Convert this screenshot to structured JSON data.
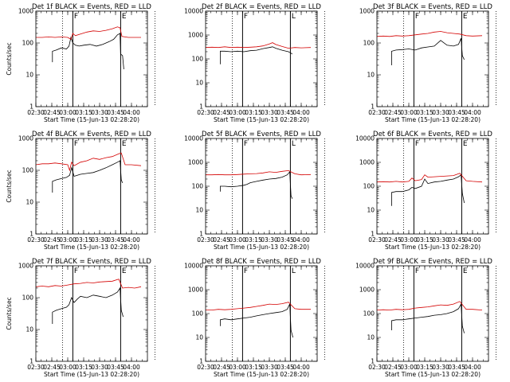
{
  "colors": {
    "events": "#000000",
    "lld": "#d40000"
  },
  "chart_data": [
    {
      "type": "line",
      "title": "Det 1f BLACK = Events, RED = LLD",
      "xlabel": "Start Time (15-Jun-13 02:28:20)",
      "ylabel": "Counts/sec",
      "y_log": true,
      "ylim": [
        1,
        1000
      ],
      "ytick_labels": [
        "1",
        "10",
        "100",
        "1000"
      ],
      "xtick_labels": [
        "02:30",
        "02:45",
        "03:00",
        "03:15",
        "03:30",
        "03:45",
        "04:00"
      ],
      "dotted_lines_hours": [
        2.92,
        4.37
      ],
      "flag_lines": [
        {
          "t": 3.08,
          "letter": "F"
        },
        {
          "t": 3.83,
          "letter": "E"
        }
      ],
      "series": [
        {
          "name": "Events",
          "x": [
            2.76,
            2.76,
            2.82,
            2.9,
            2.98,
            3.02,
            3.05,
            3.08,
            3.12,
            3.18,
            3.25,
            3.35,
            3.45,
            3.55,
            3.65,
            3.72,
            3.78,
            3.82,
            3.83,
            3.86,
            3.88
          ],
          "y": [
            25,
            55,
            60,
            70,
            65,
            80,
            150,
            100,
            85,
            80,
            85,
            90,
            80,
            90,
            110,
            130,
            180,
            200,
            45,
            40,
            15
          ]
        },
        {
          "name": "LLD",
          "x": [
            2.5,
            2.6,
            2.7,
            2.8,
            2.9,
            3.0,
            3.05,
            3.08,
            3.12,
            3.2,
            3.3,
            3.4,
            3.5,
            3.6,
            3.7,
            3.78,
            3.82,
            3.85,
            3.95,
            4.05,
            4.15
          ],
          "y": [
            150,
            150,
            155,
            150,
            155,
            150,
            130,
            200,
            170,
            190,
            220,
            240,
            230,
            250,
            280,
            320,
            300,
            160,
            150,
            150,
            150
          ]
        }
      ]
    },
    {
      "type": "line",
      "title": "Det 2f BLACK = Events, RED = LLD",
      "xlabel": "Start Time (15-Jun-13 02:28:20)",
      "ylabel": "",
      "y_log": true,
      "ylim": [
        1,
        10000
      ],
      "ytick_labels": [
        "1",
        "10",
        "100",
        "1000",
        "10000"
      ],
      "xtick_labels": [
        "02:30",
        "02:45",
        "03:00",
        "03:15",
        "03:30",
        "03:45",
        "04:00"
      ],
      "dotted_lines_hours": [
        2.92,
        4.37
      ],
      "flag_lines": [
        {
          "t": 3.08,
          "letter": "F"
        },
        {
          "t": 3.83,
          "letter": "L"
        }
      ],
      "series": [
        {
          "name": "Events",
          "x": [
            2.73,
            2.73,
            2.8,
            2.9,
            3.0,
            3.1,
            3.2,
            3.3,
            3.4,
            3.5,
            3.55,
            3.6,
            3.7,
            3.8,
            3.83,
            3.86
          ],
          "y": [
            60,
            210,
            210,
            200,
            210,
            200,
            220,
            230,
            270,
            300,
            320,
            280,
            230,
            200,
            180,
            160
          ]
        },
        {
          "name": "LLD",
          "x": [
            2.5,
            2.6,
            2.7,
            2.8,
            2.9,
            3.0,
            3.1,
            3.2,
            3.3,
            3.4,
            3.5,
            3.55,
            3.6,
            3.7,
            3.8,
            3.9,
            4.0,
            4.15
          ],
          "y": [
            300,
            310,
            300,
            320,
            300,
            310,
            300,
            310,
            320,
            350,
            420,
            480,
            400,
            330,
            280,
            300,
            290,
            300
          ]
        }
      ]
    },
    {
      "type": "line",
      "title": "Det 3f BLACK = Events, RED = LLD",
      "xlabel": "Start Time (15-Jun-13 02:28:20)",
      "ylabel": "",
      "y_log": true,
      "ylim": [
        1,
        1000
      ],
      "ytick_labels": [
        "1",
        "10",
        "100",
        "1000"
      ],
      "xtick_labels": [
        "02:30",
        "02:45",
        "03:00",
        "03:15",
        "03:30",
        "03:45",
        "04:00"
      ],
      "dotted_lines_hours": [
        2.92,
        4.37
      ],
      "flag_lines": [
        {
          "t": 3.08,
          "letter": "F"
        },
        {
          "t": 3.83,
          "letter": "E"
        }
      ],
      "series": [
        {
          "name": "Events",
          "x": [
            2.73,
            2.73,
            2.8,
            2.9,
            3.0,
            3.1,
            3.2,
            3.3,
            3.4,
            3.5,
            3.6,
            3.7,
            3.78,
            3.82,
            3.84,
            3.87
          ],
          "y": [
            20,
            55,
            60,
            62,
            65,
            60,
            70,
            75,
            80,
            120,
            85,
            80,
            90,
            140,
            40,
            30
          ]
        },
        {
          "name": "LLD",
          "x": [
            2.5,
            2.6,
            2.7,
            2.8,
            2.9,
            3.0,
            3.1,
            3.2,
            3.3,
            3.4,
            3.5,
            3.6,
            3.7,
            3.8,
            3.9,
            4.0,
            4.15
          ],
          "y": [
            160,
            165,
            160,
            170,
            165,
            170,
            180,
            190,
            200,
            220,
            230,
            210,
            200,
            190,
            170,
            165,
            170
          ]
        }
      ]
    },
    {
      "type": "line",
      "title": "Det 4f BLACK = Events, RED = LLD",
      "xlabel": "Start Time (15-Jun-13 02:28:20)",
      "ylabel": "Counts/sec",
      "y_log": true,
      "ylim": [
        1,
        1000
      ],
      "ytick_labels": [
        "1",
        "10",
        "100",
        "1000"
      ],
      "xtick_labels": [
        "02:30",
        "02:45",
        "03:00",
        "03:15",
        "03:30",
        "03:45",
        "04:00"
      ],
      "dotted_lines_hours": [
        2.92,
        4.37
      ],
      "flag_lines": [
        {
          "t": 3.08,
          "letter": "F"
        },
        {
          "t": 3.83,
          "letter": "E"
        }
      ],
      "series": [
        {
          "name": "Events",
          "x": [
            2.76,
            2.76,
            2.82,
            2.9,
            2.98,
            3.03,
            3.06,
            3.1,
            3.15,
            3.2,
            3.3,
            3.4,
            3.5,
            3.6,
            3.7,
            3.78,
            3.82,
            3.84,
            3.86
          ],
          "y": [
            20,
            45,
            50,
            55,
            60,
            70,
            120,
            65,
            70,
            75,
            80,
            85,
            100,
            120,
            150,
            180,
            200,
            50,
            40
          ]
        },
        {
          "name": "LLD",
          "x": [
            2.5,
            2.6,
            2.7,
            2.8,
            2.9,
            3.0,
            3.03,
            3.06,
            3.1,
            3.2,
            3.3,
            3.4,
            3.5,
            3.6,
            3.7,
            3.8,
            3.84,
            3.9,
            4.0,
            4.15
          ],
          "y": [
            150,
            160,
            160,
            170,
            160,
            150,
            100,
            180,
            140,
            180,
            200,
            240,
            220,
            250,
            270,
            330,
            350,
            150,
            150,
            140
          ]
        }
      ]
    },
    {
      "type": "line",
      "title": "Det 5f BLACK = Events, RED = LLD",
      "xlabel": "Start Time (15-Jun-13 02:28:20)",
      "ylabel": "",
      "y_log": true,
      "ylim": [
        1,
        10000
      ],
      "ytick_labels": [
        "1",
        "10",
        "100",
        "1000",
        "10000"
      ],
      "xtick_labels": [
        "02:30",
        "02:45",
        "03:00",
        "03:15",
        "03:30",
        "03:45",
        "04:00"
      ],
      "dotted_lines_hours": [
        2.92,
        4.37
      ],
      "flag_lines": [
        {
          "t": 3.08,
          "letter": "F"
        },
        {
          "t": 3.83,
          "letter": "L"
        }
      ],
      "series": [
        {
          "name": "Events",
          "x": [
            2.73,
            2.73,
            2.8,
            2.9,
            3.0,
            3.1,
            3.15,
            3.2,
            3.3,
            3.4,
            3.5,
            3.6,
            3.7,
            3.78,
            3.82,
            3.84,
            3.86
          ],
          "y": [
            60,
            100,
            100,
            95,
            100,
            110,
            120,
            140,
            160,
            180,
            200,
            210,
            240,
            300,
            400,
            40,
            30
          ]
        },
        {
          "name": "LLD",
          "x": [
            2.5,
            2.6,
            2.7,
            2.8,
            2.9,
            3.0,
            3.1,
            3.2,
            3.3,
            3.4,
            3.5,
            3.6,
            3.7,
            3.8,
            3.9,
            4.0,
            4.15
          ],
          "y": [
            300,
            300,
            310,
            300,
            300,
            310,
            320,
            330,
            340,
            360,
            400,
            380,
            420,
            450,
            330,
            300,
            310
          ]
        }
      ]
    },
    {
      "type": "line",
      "title": "Det 6f BLACK = Events, RED = LLD",
      "xlabel": "Start Time (15-Jun-13 02:28:20)",
      "ylabel": "",
      "y_log": true,
      "ylim": [
        1,
        10000
      ],
      "ytick_labels": [
        "1",
        "10",
        "100",
        "1000",
        "10000"
      ],
      "xtick_labels": [
        "02:30",
        "02:45",
        "03:00",
        "03:15",
        "03:30",
        "03:45",
        "04:00"
      ],
      "dotted_lines_hours": [
        2.92,
        4.37
      ],
      "flag_lines": [
        {
          "t": 3.08,
          "letter": "F"
        },
        {
          "t": 3.83,
          "letter": "E"
        }
      ],
      "series": [
        {
          "name": "Events",
          "x": [
            2.73,
            2.73,
            2.8,
            2.9,
            3.0,
            3.05,
            3.1,
            3.2,
            3.25,
            3.3,
            3.4,
            3.5,
            3.6,
            3.7,
            3.78,
            3.82,
            3.84,
            3.87
          ],
          "y": [
            15,
            55,
            60,
            60,
            70,
            90,
            80,
            100,
            200,
            130,
            150,
            160,
            180,
            200,
            250,
            300,
            50,
            20
          ]
        },
        {
          "name": "LLD",
          "x": [
            2.5,
            2.6,
            2.7,
            2.8,
            2.9,
            3.0,
            3.05,
            3.1,
            3.2,
            3.25,
            3.3,
            3.4,
            3.5,
            3.6,
            3.7,
            3.8,
            3.9,
            4.0,
            4.15
          ],
          "y": [
            150,
            155,
            150,
            160,
            150,
            160,
            220,
            170,
            190,
            300,
            240,
            250,
            260,
            270,
            280,
            350,
            170,
            160,
            150
          ]
        }
      ]
    },
    {
      "type": "line",
      "title": "Det 7f BLACK = Events, RED = LLD",
      "xlabel": "Start Time (15-Jun-13 02:28:20)",
      "ylabel": "Counts/sec",
      "y_log": true,
      "ylim": [
        1,
        1000
      ],
      "ytick_labels": [
        "1",
        "10",
        "100",
        "1000"
      ],
      "xtick_labels": [
        "02:30",
        "02:45",
        "03:00",
        "03:15",
        "03:30",
        "03:45",
        "04:00"
      ],
      "dotted_lines_hours": [
        2.92,
        4.37
      ],
      "flag_lines": [
        {
          "t": 3.08,
          "letter": "F"
        },
        {
          "t": 3.83,
          "letter": "E"
        }
      ],
      "series": [
        {
          "name": "Events",
          "x": [
            2.76,
            2.76,
            2.82,
            2.9,
            2.98,
            3.02,
            3.06,
            3.1,
            3.15,
            3.2,
            3.3,
            3.4,
            3.5,
            3.6,
            3.7,
            3.78,
            3.82,
            3.84,
            3.87
          ],
          "y": [
            15,
            35,
            40,
            45,
            50,
            60,
            100,
            70,
            90,
            110,
            100,
            120,
            110,
            100,
            120,
            150,
            200,
            40,
            25
          ]
        },
        {
          "name": "LLD",
          "x": [
            2.5,
            2.6,
            2.7,
            2.8,
            2.9,
            3.0,
            3.1,
            3.2,
            3.3,
            3.4,
            3.5,
            3.6,
            3.7,
            3.8,
            3.86,
            3.95,
            4.05,
            4.15
          ],
          "y": [
            220,
            230,
            220,
            240,
            230,
            250,
            270,
            280,
            300,
            290,
            310,
            320,
            330,
            380,
            200,
            210,
            200,
            220
          ]
        }
      ]
    },
    {
      "type": "line",
      "title": "Det 8f BLACK = Events, RED = LLD",
      "xlabel": "Start Time (15-Jun-13 02:28:20)",
      "ylabel": "",
      "y_log": true,
      "ylim": [
        1,
        10000
      ],
      "ytick_labels": [
        "1",
        "10",
        "100",
        "1000",
        "10000"
      ],
      "xtick_labels": [
        "02:30",
        "02:45",
        "03:00",
        "03:15",
        "03:30",
        "03:45",
        "04:00"
      ],
      "dotted_lines_hours": [
        2.92,
        4.37
      ],
      "flag_lines": [
        {
          "t": 3.08,
          "letter": "F"
        },
        {
          "t": 3.83,
          "letter": "L"
        }
      ],
      "series": [
        {
          "name": "Events",
          "x": [
            2.73,
            2.73,
            2.8,
            2.9,
            3.0,
            3.1,
            3.2,
            3.3,
            3.4,
            3.5,
            3.6,
            3.7,
            3.78,
            3.82,
            3.84,
            3.87
          ],
          "y": [
            30,
            55,
            60,
            55,
            60,
            65,
            70,
            80,
            90,
            100,
            110,
            120,
            150,
            250,
            20,
            10
          ]
        },
        {
          "name": "LLD",
          "x": [
            2.5,
            2.6,
            2.7,
            2.8,
            2.9,
            3.0,
            3.1,
            3.2,
            3.3,
            3.4,
            3.5,
            3.6,
            3.7,
            3.8,
            3.9,
            4.0,
            4.15
          ],
          "y": [
            140,
            140,
            150,
            145,
            150,
            160,
            170,
            180,
            200,
            220,
            250,
            240,
            260,
            300,
            160,
            150,
            150
          ]
        }
      ]
    },
    {
      "type": "line",
      "title": "Det 9f BLACK = Events, RED = LLD",
      "xlabel": "Start Time (15-Jun-13 02:28:20)",
      "ylabel": "",
      "y_log": true,
      "ylim": [
        1,
        10000
      ],
      "ytick_labels": [
        "1",
        "10",
        "100",
        "1000",
        "10000"
      ],
      "xtick_labels": [
        "02:30",
        "02:45",
        "03:00",
        "03:15",
        "03:30",
        "03:45",
        "04:00"
      ],
      "dotted_lines_hours": [
        2.92,
        4.37
      ],
      "flag_lines": [
        {
          "t": 3.08,
          "letter": "F"
        },
        {
          "t": 3.83,
          "letter": "E"
        }
      ],
      "series": [
        {
          "name": "Events",
          "x": [
            2.73,
            2.73,
            2.8,
            2.9,
            3.0,
            3.1,
            3.2,
            3.3,
            3.4,
            3.5,
            3.6,
            3.7,
            3.78,
            3.82,
            3.84,
            3.87
          ],
          "y": [
            20,
            50,
            55,
            55,
            60,
            65,
            70,
            75,
            85,
            90,
            100,
            120,
            160,
            250,
            30,
            15
          ]
        },
        {
          "name": "LLD",
          "x": [
            2.5,
            2.6,
            2.7,
            2.8,
            2.9,
            3.0,
            3.1,
            3.2,
            3.3,
            3.4,
            3.5,
            3.6,
            3.7,
            3.8,
            3.9,
            4.0,
            4.15
          ],
          "y": [
            140,
            145,
            140,
            150,
            145,
            150,
            170,
            180,
            190,
            210,
            230,
            220,
            250,
            320,
            150,
            150,
            140
          ]
        }
      ]
    }
  ]
}
